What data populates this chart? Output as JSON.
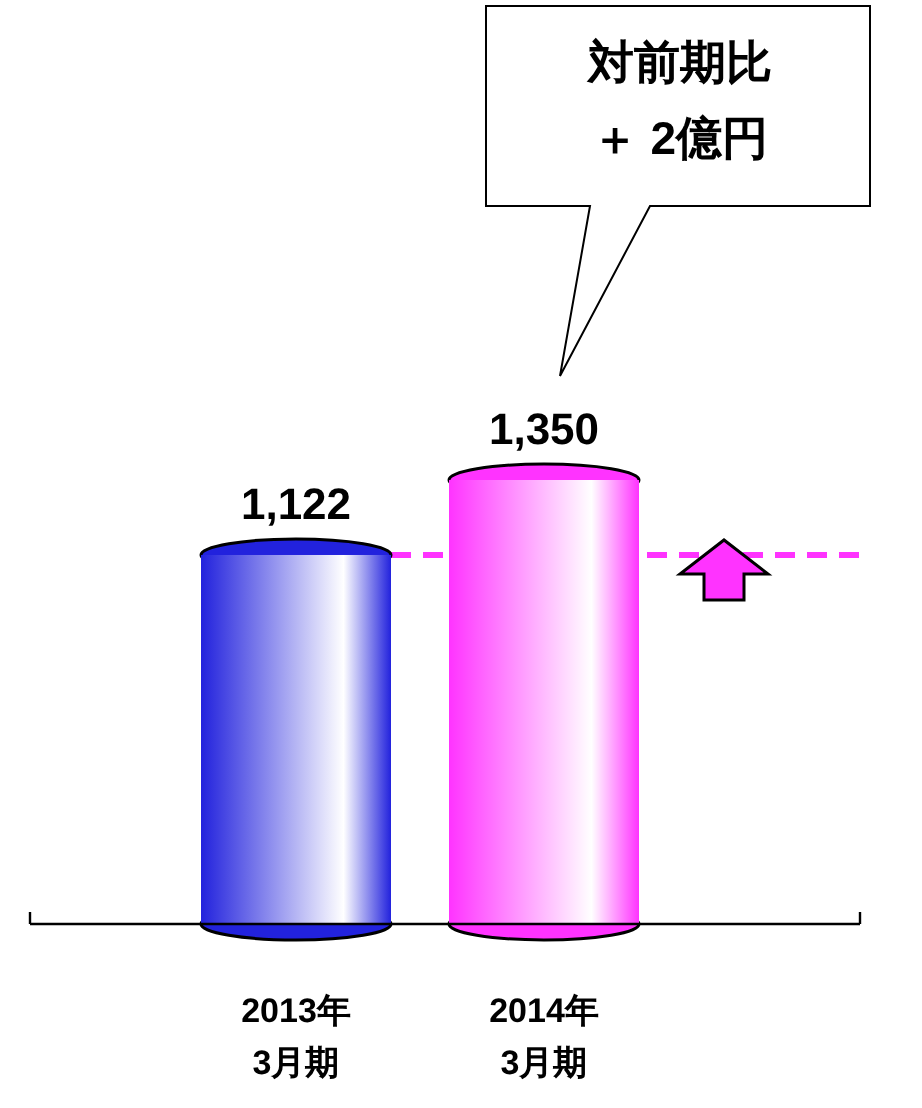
{
  "chart_data": {
    "type": "bar",
    "categories": [
      "2013年3月期",
      "2014年3月期"
    ],
    "values": [
      1122,
      1350
    ],
    "colors": [
      "#2222dd",
      "#ff33ff"
    ],
    "value_labels": [
      "1,122",
      "1,350"
    ],
    "ref_lines": [
      {
        "axis": "y",
        "value": 1122,
        "color": "#ff33ff",
        "line_style": "dashed"
      }
    ],
    "annotations": [
      "対前期比＋ 2億円"
    ]
  }
}
